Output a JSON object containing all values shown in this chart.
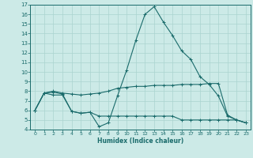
{
  "title": "",
  "xlabel": "Humidex (Indice chaleur)",
  "bg_color": "#cceae7",
  "grid_color": "#aad4d0",
  "line_color": "#1a6b6b",
  "xlim": [
    -0.5,
    23.5
  ],
  "ylim": [
    4,
    17
  ],
  "xticks": [
    0,
    1,
    2,
    3,
    4,
    5,
    6,
    7,
    8,
    9,
    10,
    11,
    12,
    13,
    14,
    15,
    16,
    17,
    18,
    19,
    20,
    21,
    22,
    23
  ],
  "yticks": [
    4,
    5,
    6,
    7,
    8,
    9,
    10,
    11,
    12,
    13,
    14,
    15,
    16,
    17
  ],
  "line1_x": [
    0,
    1,
    2,
    3,
    4,
    5,
    6,
    7,
    8,
    9,
    10,
    11,
    12,
    13,
    14,
    15,
    16,
    17,
    18,
    19,
    20,
    21,
    22,
    23
  ],
  "line1_y": [
    6.0,
    7.8,
    7.6,
    7.6,
    5.9,
    5.7,
    5.8,
    4.3,
    4.7,
    7.5,
    10.2,
    13.3,
    16.0,
    16.8,
    15.2,
    13.8,
    12.2,
    11.3,
    9.5,
    8.7,
    7.5,
    5.4,
    5.0,
    4.7
  ],
  "line2_x": [
    0,
    1,
    2,
    3,
    4,
    5,
    6,
    7,
    8,
    9,
    10,
    11,
    12,
    13,
    14,
    15,
    16,
    17,
    18,
    19,
    20,
    21,
    22,
    23
  ],
  "line2_y": [
    6.0,
    7.8,
    8.0,
    7.8,
    7.7,
    7.6,
    7.7,
    7.8,
    8.0,
    8.3,
    8.4,
    8.5,
    8.5,
    8.6,
    8.6,
    8.6,
    8.7,
    8.7,
    8.7,
    8.8,
    8.8,
    5.5,
    5.0,
    4.7
  ],
  "line3_x": [
    0,
    1,
    2,
    3,
    4,
    5,
    6,
    7,
    8,
    9,
    10,
    11,
    12,
    13,
    14,
    15,
    16,
    17,
    18,
    19,
    20,
    21,
    22,
    23
  ],
  "line3_y": [
    6.0,
    7.8,
    7.9,
    7.7,
    5.9,
    5.7,
    5.8,
    5.4,
    5.4,
    5.4,
    5.4,
    5.4,
    5.4,
    5.4,
    5.4,
    5.4,
    5.0,
    5.0,
    5.0,
    5.0,
    5.0,
    5.0,
    5.0,
    4.7
  ]
}
